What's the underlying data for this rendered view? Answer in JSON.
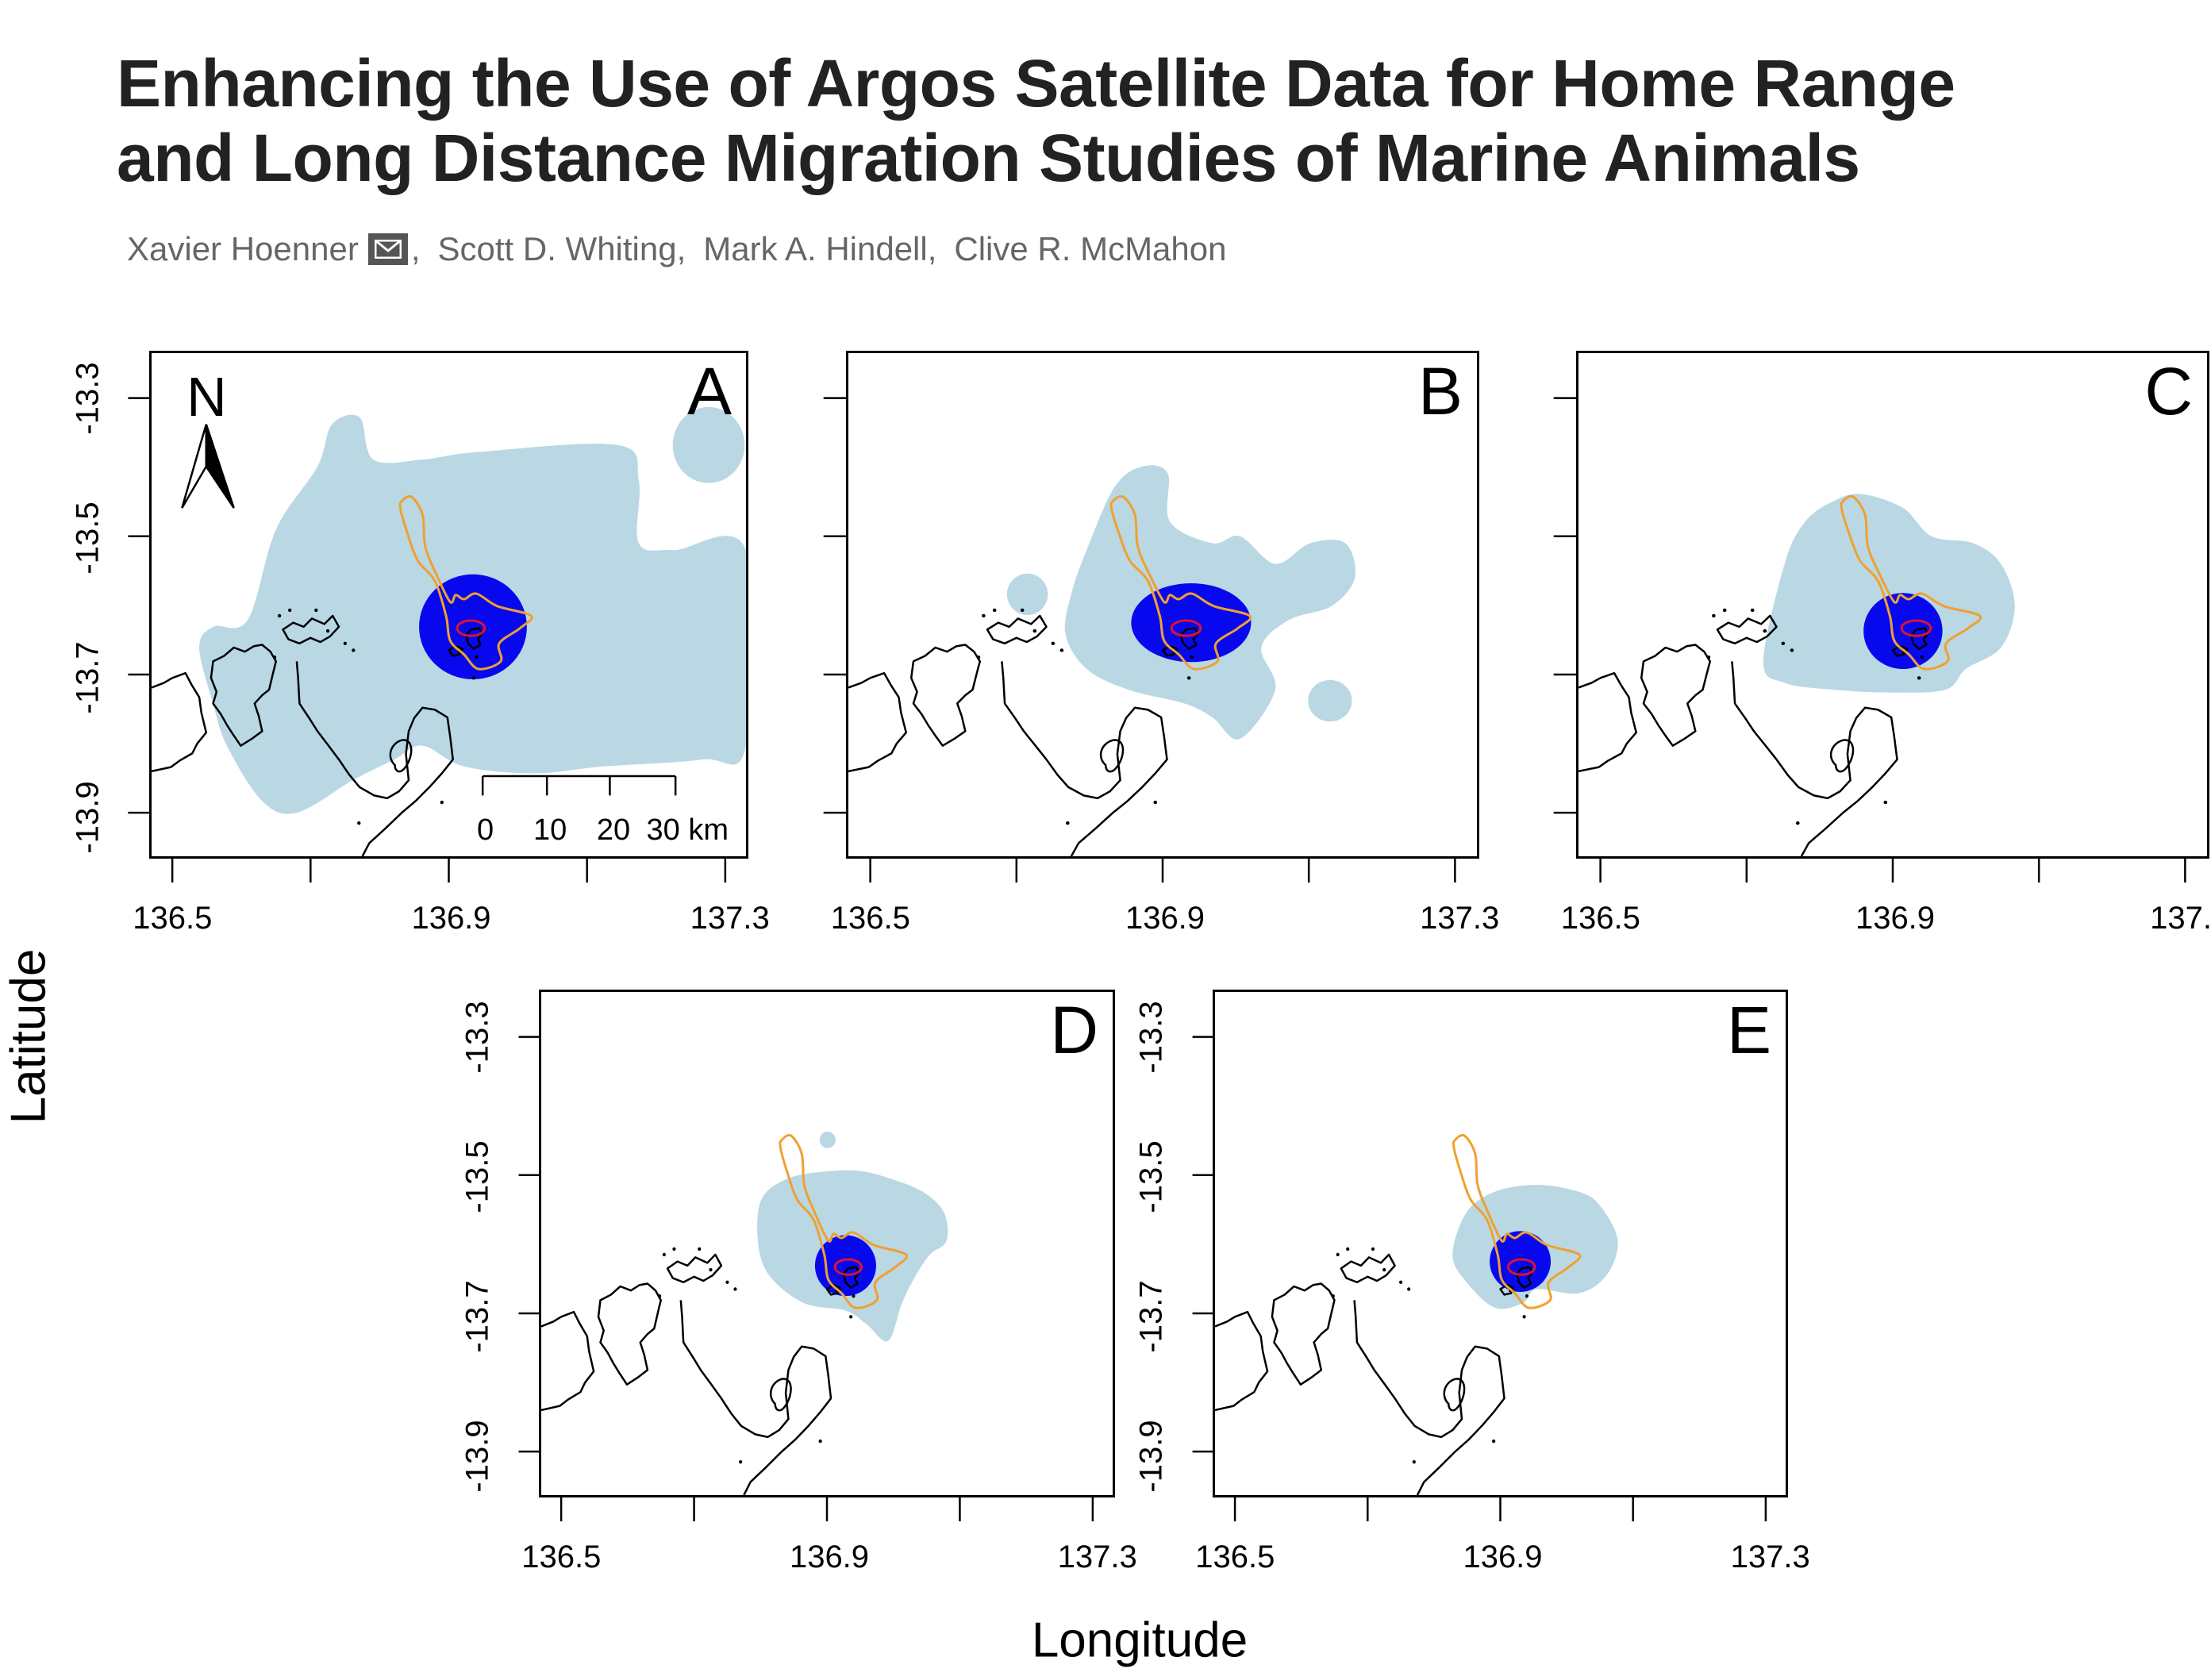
{
  "paper": {
    "title_line1": "Enhancing the Use of Argos Satellite Data for Home Range",
    "title_line2": "and Long Distance Migration Studies of Marine Animals",
    "authors": [
      "Xavier Hoenner",
      "Scott D. Whiting",
      "Mark A. Hindell",
      "Clive R. McMahon"
    ],
    "separator": ",",
    "mail_icon": "envelope-icon"
  },
  "colors": {
    "kde_outer": "#b9d8e4",
    "kde_core": "#0808ee",
    "contour_orange": "#f0a030",
    "contour_red": "#e01030",
    "coast": "#000000"
  },
  "chart_data": {
    "type": "map",
    "xlabel": "Longitude",
    "ylabel": "Latitude",
    "xlim": [
      136.47,
      137.33
    ],
    "ylim": [
      -13.963,
      -13.235
    ],
    "x_ticks": [
      136.5,
      136.7,
      136.9,
      137.1,
      137.3
    ],
    "x_tick_labels": [
      "136.5",
      "",
      "136.9",
      "",
      "137.3"
    ],
    "y_ticks": [
      -13.3,
      -13.5,
      -13.7,
      -13.9
    ],
    "y_tick_labels": [
      "-13.3",
      "-13.5",
      "-13.7",
      "-13.9"
    ],
    "panels": [
      {
        "label": "A",
        "show_y_labels": true
      },
      {
        "label": "B",
        "show_y_labels": false
      },
      {
        "label": "C",
        "show_y_labels": false
      },
      {
        "label": "D",
        "show_y_labels": true
      },
      {
        "label": "E",
        "show_y_labels": true
      }
    ],
    "north_arrow_label": "N",
    "scale_bar": {
      "labels": [
        "0",
        "10",
        "20",
        "30 km"
      ],
      "values_km": [
        0,
        10,
        20,
        30
      ]
    }
  }
}
